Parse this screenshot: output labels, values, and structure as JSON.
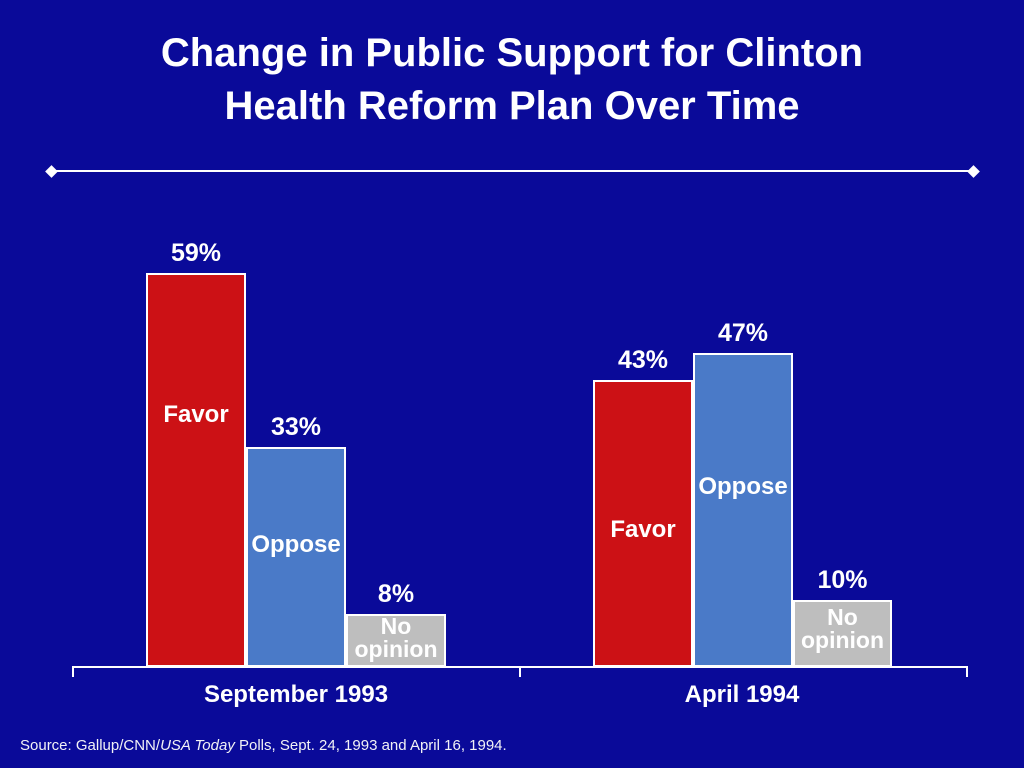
{
  "slide": {
    "title_line1": "Change in Public Support for Clinton",
    "title_line2": "Health Reform Plan Over Time",
    "source_prefix": "Source: Gallup/CNN/",
    "source_italic": "USA Today",
    "source_suffix": " Polls, Sept. 24, 1993 and April 16, 1994."
  },
  "colors": {
    "background": "#0A0A99",
    "favor": "#CC1115",
    "oppose": "#4A7AC8",
    "no_opinion": "#BEBEBE",
    "text": "#FFFFFF",
    "axis": "#FFFFFF"
  },
  "chart_data": {
    "type": "bar",
    "title": "Change in Public Support for Clinton Health Reform Plan Over Time",
    "categories": [
      "September 1993",
      "April 1994"
    ],
    "series": [
      {
        "name": "Favor",
        "values": [
          59,
          43
        ],
        "color": "#CC1115"
      },
      {
        "name": "Oppose",
        "values": [
          33,
          47
        ],
        "color": "#4A7AC8"
      },
      {
        "name": "No opinion",
        "values": [
          8,
          10
        ],
        "color": "#BEBEBE"
      }
    ],
    "value_suffix": "%",
    "unit": "percent",
    "ylim": [
      0,
      100
    ],
    "grid": false,
    "legend": "none",
    "bar_label_style": "value above bar, series name inside bar",
    "source_note": "Source: Gallup/CNN/USA Today Polls, Sept. 24, 1993 and April 16, 1994."
  }
}
